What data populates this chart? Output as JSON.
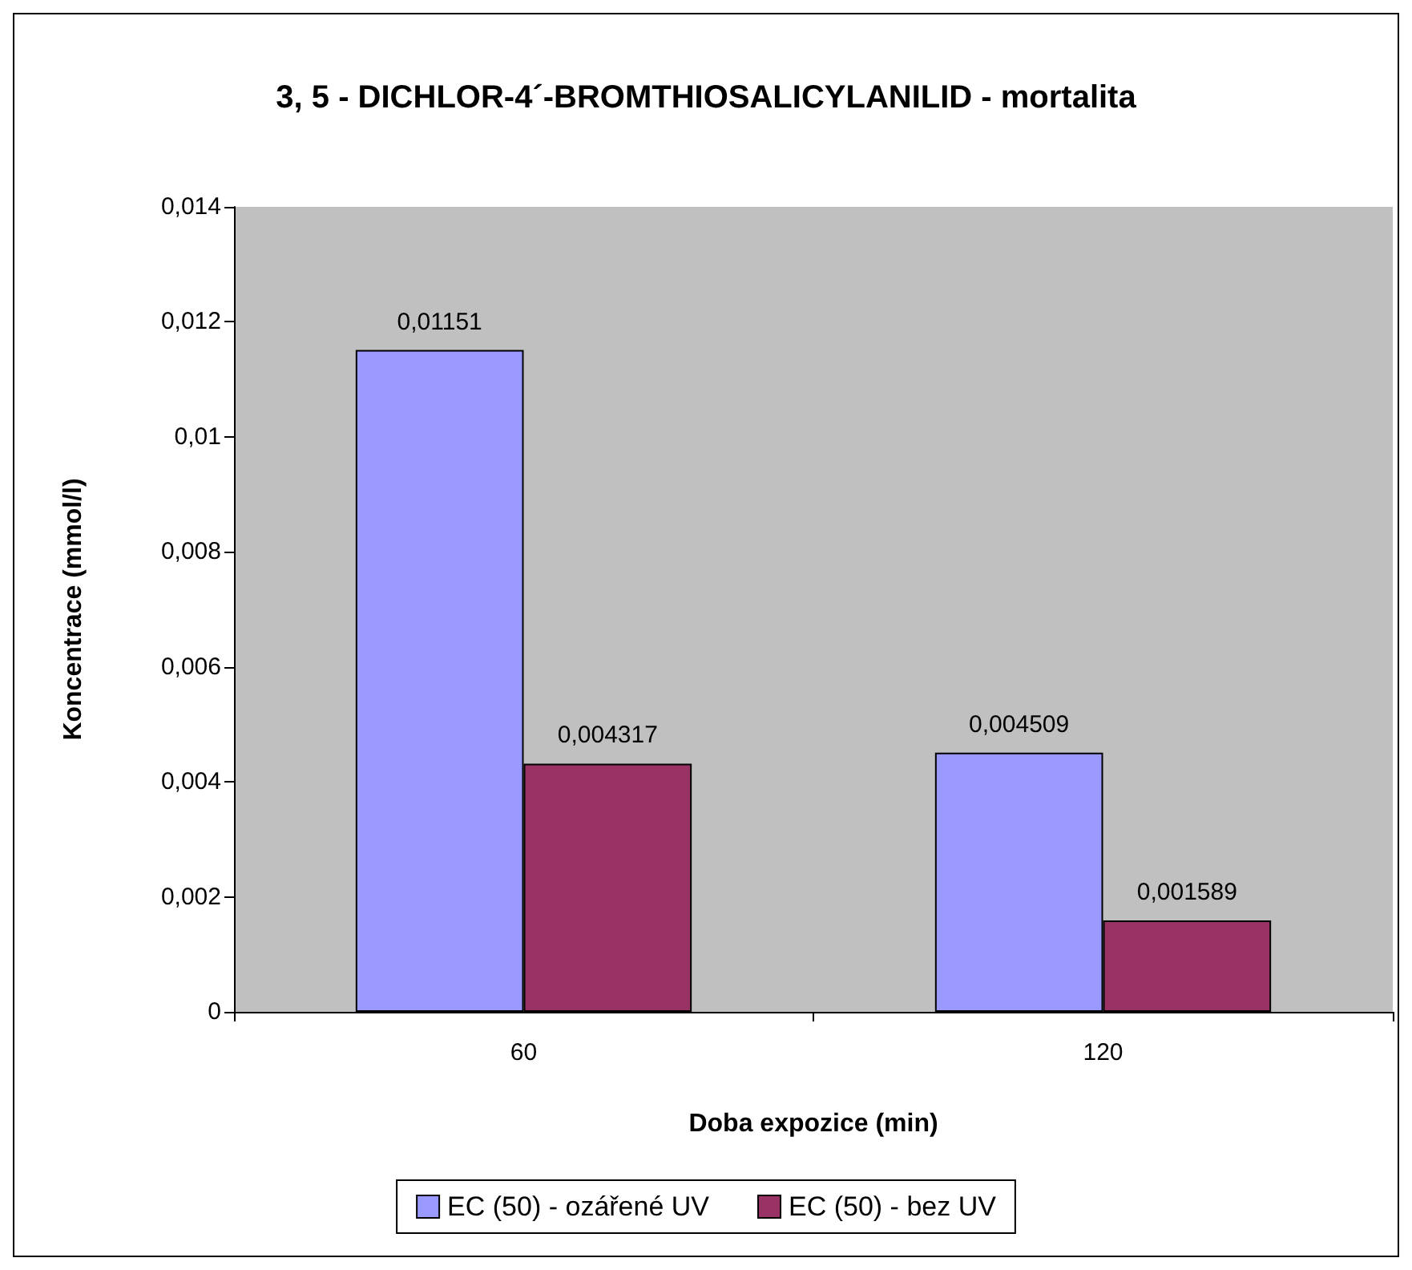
{
  "chart_data": {
    "type": "bar",
    "title": "3, 5 - DICHLOR-4´-BROMTHIOSALICYLANILID - mortalita",
    "xlabel": "Doba expozice (min)",
    "ylabel": "Koncentrace (mmol/l)",
    "categories": [
      "60",
      "120"
    ],
    "series": [
      {
        "name": "EC (50) - ozářené UV",
        "color": "#9999ff",
        "values": [
          0.01151,
          0.004509
        ],
        "value_labels": [
          "0,01151",
          "0,004509"
        ]
      },
      {
        "name": "EC (50) - bez UV",
        "color": "#993366",
        "values": [
          0.004317,
          0.001589
        ],
        "value_labels": [
          "0,004317",
          "0,001589"
        ]
      }
    ],
    "ylim": [
      0,
      0.014
    ],
    "yticks": [
      {
        "value": 0,
        "label": "0"
      },
      {
        "value": 0.002,
        "label": "0,002"
      },
      {
        "value": 0.004,
        "label": "0,004"
      },
      {
        "value": 0.006,
        "label": "0,006"
      },
      {
        "value": 0.008,
        "label": "0,008"
      },
      {
        "value": 0.01,
        "label": "0,01"
      },
      {
        "value": 0.012,
        "label": "0,012"
      },
      {
        "value": 0.014,
        "label": "0,014"
      }
    ],
    "grid": false,
    "legend": "bottom"
  }
}
